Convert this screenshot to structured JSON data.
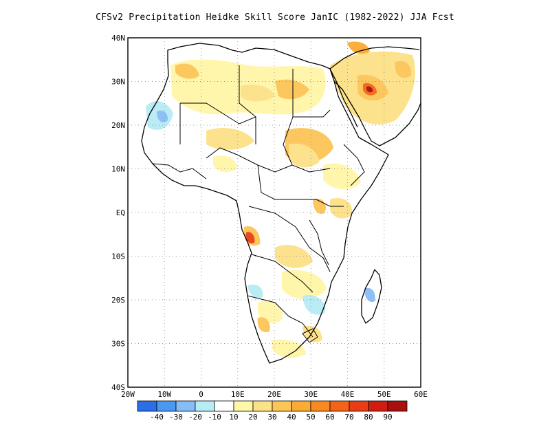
{
  "title": "CFSv2  Precipitation Heidke Skill Score JanIC (1982-2022) JJA Fcst",
  "lat_labels": [
    "40N",
    "30N",
    "20N",
    "10N",
    "EQ",
    "10S",
    "20S",
    "30S",
    "40S"
  ],
  "lon_labels": [
    "20W",
    "10W",
    "0",
    "10E",
    "20E",
    "30E",
    "40E",
    "50E",
    "60E"
  ],
  "colorbar": {
    "colors": [
      "#2a6fe8",
      "#4b98f3",
      "#86bdf6",
      "#b7ecf6",
      "#ffffff",
      "#fff6a8",
      "#fde187",
      "#fcc557",
      "#fbaa34",
      "#f88a1f",
      "#f46418",
      "#e93e15",
      "#d01d12",
      "#a90f0c"
    ],
    "labels": [
      "-40",
      "-30",
      "-20",
      "-10",
      "10",
      "20",
      "30",
      "40",
      "50",
      "60",
      "70",
      "80",
      "90"
    ]
  },
  "map": {
    "lon_range": [
      -20,
      60
    ],
    "lat_range": [
      -40,
      40
    ],
    "grid": "dotted every 10 degrees",
    "region": "Africa and Arabian Peninsula"
  }
}
